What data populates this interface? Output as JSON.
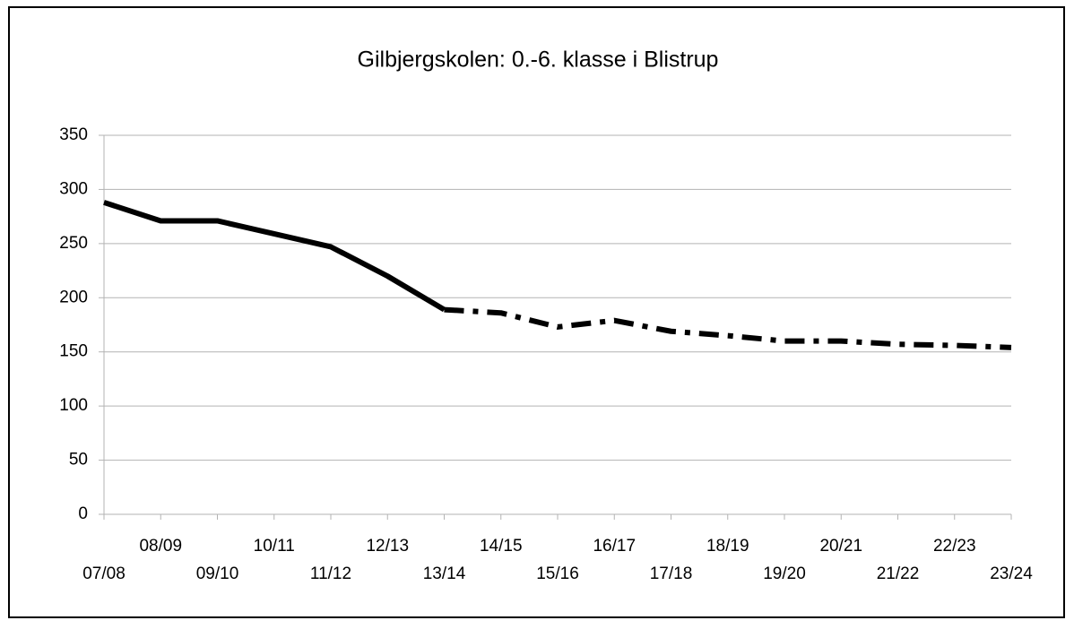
{
  "chart_data": {
    "type": "line",
    "title": "Gilbjergskolen: 0.-6. klasse i Blistrup",
    "categories": [
      "07/08",
      "08/09",
      "09/10",
      "10/11",
      "11/12",
      "12/13",
      "13/14",
      "14/15",
      "15/16",
      "16/17",
      "17/18",
      "18/19",
      "19/20",
      "20/21",
      "21/22",
      "22/23",
      "23/24"
    ],
    "series": [
      {
        "color": "#000000",
        "dash": "solid",
        "values": [
          288,
          271,
          271,
          259,
          247,
          220,
          189,
          null,
          null,
          null,
          null,
          null,
          null,
          null,
          null,
          null,
          null
        ]
      },
      {
        "color": "#000000",
        "dash": "dash-dot",
        "values": [
          null,
          null,
          null,
          null,
          null,
          null,
          189,
          186,
          173,
          179,
          169,
          165,
          160,
          160,
          157,
          156,
          154
        ]
      }
    ],
    "ylim": [
      0,
      350
    ],
    "yticks": [
      0,
      50,
      100,
      150,
      200,
      250,
      300,
      350
    ],
    "grid": true
  }
}
